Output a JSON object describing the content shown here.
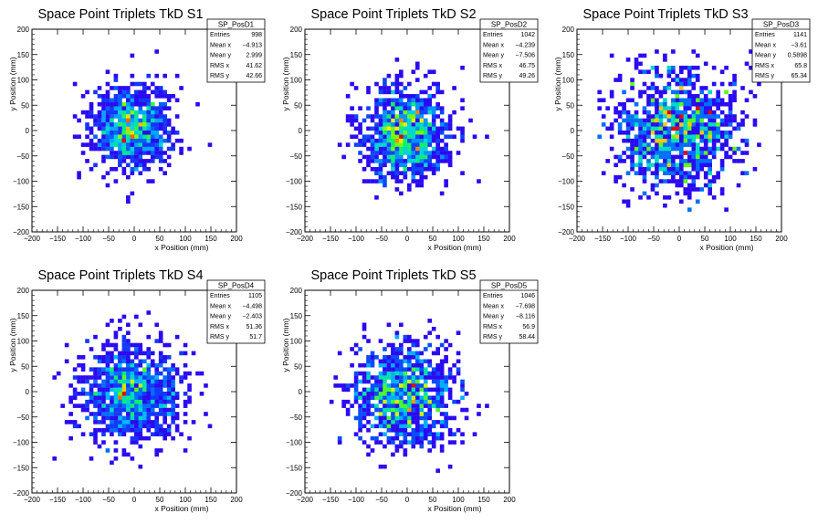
{
  "chart_data": [
    {
      "type": "heatmap",
      "title": "Space Point Triplets TkD S1",
      "xlabel": "x Position (mm)",
      "ylabel": "y Position (mm)",
      "xlim": [
        -200,
        200
      ],
      "ylim": [
        -200,
        200
      ],
      "xticks": [
        -200,
        -150,
        -100,
        -50,
        0,
        50,
        100,
        150,
        200
      ],
      "yticks": [
        -200,
        -150,
        -100,
        -50,
        0,
        50,
        100,
        150,
        200
      ],
      "grid": false,
      "colormap": "rainbow (blue-cyan-green-yellow-red)",
      "stats_box": {
        "name": "SP_PosD1",
        "rows": [
          [
            "Entries",
            "998"
          ],
          [
            "Mean x",
            "-4.913"
          ],
          [
            "Mean y",
            "2.999"
          ],
          [
            "RMS x",
            "41.62"
          ],
          [
            "RMS y",
            "42.66"
          ]
        ]
      },
      "distribution": {
        "mean_x": -4.913,
        "mean_y": 2.999,
        "rms_x": 41.62,
        "rms_y": 42.66,
        "entries": 998
      }
    },
    {
      "type": "heatmap",
      "title": "Space Point Triplets TkD S2",
      "xlabel": "x Position (mm)",
      "ylabel": "y Position (mm)",
      "xlim": [
        -200,
        200
      ],
      "ylim": [
        -200,
        200
      ],
      "xticks": [
        -200,
        -150,
        -100,
        -50,
        0,
        50,
        100,
        150,
        200
      ],
      "yticks": [
        -200,
        -150,
        -100,
        -50,
        0,
        50,
        100,
        150,
        200
      ],
      "grid": false,
      "colormap": "rainbow (blue-cyan-green-yellow-red)",
      "stats_box": {
        "name": "SP_PosD2",
        "rows": [
          [
            "Entries",
            "1042"
          ],
          [
            "Mean x",
            "-4.239"
          ],
          [
            "Mean y",
            "-7.506"
          ],
          [
            "RMS x",
            "46.75"
          ],
          [
            "RMS y",
            "49.26"
          ]
        ]
      },
      "distribution": {
        "mean_x": -4.239,
        "mean_y": -7.506,
        "rms_x": 46.75,
        "rms_y": 49.26,
        "entries": 1042
      }
    },
    {
      "type": "heatmap",
      "title": "Space Point Triplets TkD S3",
      "xlabel": "x Position (mm)",
      "ylabel": "y Position (mm)",
      "xlim": [
        -200,
        200
      ],
      "ylim": [
        -200,
        200
      ],
      "xticks": [
        -200,
        -150,
        -100,
        -50,
        0,
        50,
        100,
        150,
        200
      ],
      "yticks": [
        -200,
        -150,
        -100,
        -50,
        0,
        50,
        100,
        150,
        200
      ],
      "grid": false,
      "colormap": "rainbow (blue-cyan-green-yellow-red)",
      "stats_box": {
        "name": "SP_PosD3",
        "rows": [
          [
            "Entries",
            "1141"
          ],
          [
            "Mean x",
            "-3.61"
          ],
          [
            "Mean y",
            "0.5898"
          ],
          [
            "RMS x",
            "65.8"
          ],
          [
            "RMS y",
            "65.34"
          ]
        ]
      },
      "distribution": {
        "mean_x": -3.61,
        "mean_y": 0.5898,
        "rms_x": 65.8,
        "rms_y": 65.34,
        "entries": 1141
      }
    },
    {
      "type": "heatmap",
      "title": "Space Point Triplets TkD S4",
      "xlabel": "x Position (mm)",
      "ylabel": "y Position (mm)",
      "xlim": [
        -200,
        200
      ],
      "ylim": [
        -200,
        200
      ],
      "xticks": [
        -200,
        -150,
        -100,
        -50,
        0,
        50,
        100,
        150,
        200
      ],
      "yticks": [
        -200,
        -150,
        -100,
        -50,
        0,
        50,
        100,
        150,
        200
      ],
      "grid": false,
      "colormap": "rainbow (blue-cyan-green-yellow-red)",
      "stats_box": {
        "name": "SP_PosD4",
        "rows": [
          [
            "Entries",
            "1105"
          ],
          [
            "Mean x",
            "-4.498"
          ],
          [
            "Mean y",
            "-2.403"
          ],
          [
            "RMS x",
            "51.36"
          ],
          [
            "RMS y",
            "51.7"
          ]
        ]
      },
      "distribution": {
        "mean_x": -4.498,
        "mean_y": -2.403,
        "rms_x": 51.36,
        "rms_y": 51.7,
        "entries": 1105
      }
    },
    {
      "type": "heatmap",
      "title": "Space Point Triplets TkD S5",
      "xlabel": "x Position (mm)",
      "ylabel": "y Position (mm)",
      "xlim": [
        -200,
        200
      ],
      "ylim": [
        -200,
        200
      ],
      "xticks": [
        -200,
        -150,
        -100,
        -50,
        0,
        50,
        100,
        150,
        200
      ],
      "yticks": [
        -200,
        -150,
        -100,
        -50,
        0,
        50,
        100,
        150,
        200
      ],
      "grid": false,
      "colormap": "rainbow (blue-cyan-green-yellow-red)",
      "stats_box": {
        "name": "SP_PosD5",
        "rows": [
          [
            "Entries",
            "1046"
          ],
          [
            "Mean x",
            "-7.698"
          ],
          [
            "Mean y",
            "-8.116"
          ],
          [
            "RMS x",
            "56.9"
          ],
          [
            "RMS y",
            "58.44"
          ]
        ]
      },
      "distribution": {
        "mean_x": -7.698,
        "mean_y": -8.116,
        "rms_x": 56.9,
        "rms_y": 58.44,
        "entries": 1046
      }
    }
  ]
}
